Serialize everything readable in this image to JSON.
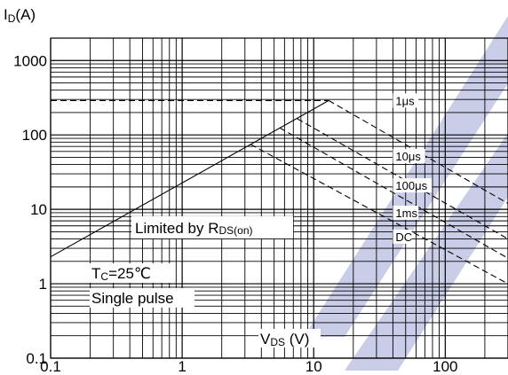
{
  "chart_data": {
    "type": "line",
    "title": "",
    "x_scale": "log",
    "y_scale": "log",
    "xlim": [
      0.1,
      300
    ],
    "ylim": [
      0.1,
      2000
    ],
    "grid": true,
    "ylabel": {
      "main": "I",
      "sub": "D",
      "unit": "(A)"
    },
    "xlabel": {
      "main": "V",
      "sub": "DS",
      "unit": " (V)"
    },
    "x_ticks": [
      {
        "value": 0.1,
        "label": "0.1"
      },
      {
        "value": 1,
        "label": "1"
      },
      {
        "value": 10,
        "label": "10"
      },
      {
        "value": 100,
        "label": "100"
      }
    ],
    "y_ticks": [
      {
        "value": 0.1,
        "label": "0.1"
      },
      {
        "value": 1,
        "label": "1"
      },
      {
        "value": 10,
        "label": "10"
      },
      {
        "value": 100,
        "label": "100"
      },
      {
        "value": 1000,
        "label": "1000"
      }
    ],
    "series": [
      {
        "style": "solid",
        "points": [
          [
            0.1,
            2.3
          ],
          [
            13,
            290
          ]
        ]
      },
      {
        "style": "dashed",
        "points": [
          [
            0.1,
            290
          ],
          [
            13,
            290
          ]
        ]
      },
      {
        "style": "dashed",
        "points": [
          [
            13,
            290
          ],
          [
            300,
            12
          ]
        ]
      },
      {
        "style": "dashed",
        "points": [
          [
            7.5,
            165
          ],
          [
            300,
            4
          ]
        ]
      },
      {
        "style": "dashed",
        "points": [
          [
            5.5,
            125
          ],
          [
            300,
            2.2
          ]
        ]
      },
      {
        "style": "dashed",
        "points": [
          [
            3.3,
            75
          ],
          [
            300,
            1
          ]
        ]
      }
    ],
    "curve_labels": [
      {
        "text": "1μs",
        "x": 40,
        "y": 290
      },
      {
        "text": "10μs",
        "x": 40,
        "y": 52
      },
      {
        "text": "100μs",
        "x": 40,
        "y": 21
      },
      {
        "text": "1ms",
        "x": 40,
        "y": 9
      },
      {
        "text": "DC",
        "x": 40,
        "y": 4.3
      }
    ],
    "annotations": {
      "limited": {
        "main": "Limited by R",
        "sub": "DS(on)"
      },
      "tc": {
        "main": "T",
        "sub": "C",
        "rest": "=25℃"
      },
      "pulse": "Single pulse"
    },
    "watermark_color": "#c9cde8"
  }
}
